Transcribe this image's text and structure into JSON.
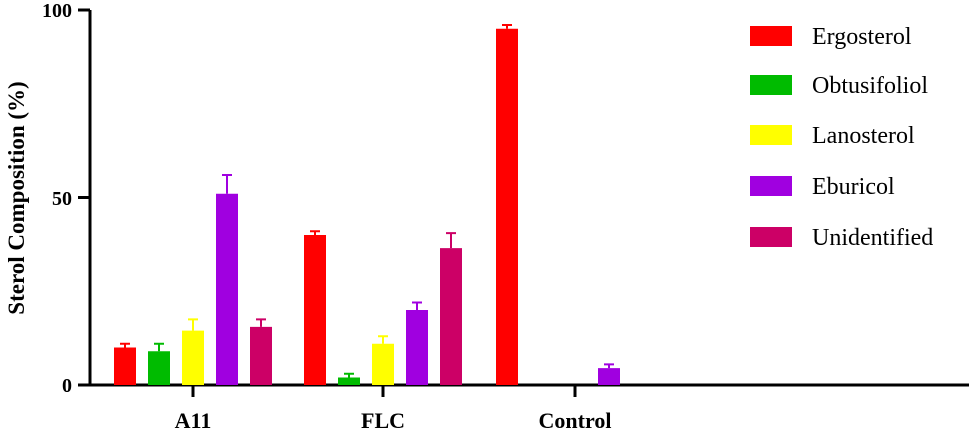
{
  "chart_data": {
    "type": "bar",
    "ylabel": "Sterol Composition (%)",
    "xlabel": "",
    "ylim": [
      0,
      100
    ],
    "yticks": [
      "0",
      "50",
      "100"
    ],
    "categories": [
      "A11",
      "FLC",
      "Control"
    ],
    "legend_position": "right",
    "series": [
      {
        "name": "Ergosterol",
        "color": "#ff0000",
        "values": [
          10,
          40,
          95
        ],
        "errors": [
          1,
          1,
          1
        ]
      },
      {
        "name": "Obtusifoliol",
        "color": "#00bb00",
        "values": [
          9,
          2,
          0
        ],
        "errors": [
          2,
          1,
          0
        ]
      },
      {
        "name": "Lanosterol",
        "color": "#ffff00",
        "values": [
          14.5,
          11,
          0
        ],
        "errors": [
          3,
          2,
          0
        ]
      },
      {
        "name": "Eburicol",
        "color": "#a000e0",
        "values": [
          51,
          20,
          4.5
        ],
        "errors": [
          5,
          2,
          1
        ]
      },
      {
        "name": "Unidentified",
        "color": "#cc0066",
        "values": [
          15.5,
          36.5,
          0
        ],
        "errors": [
          2,
          4,
          0
        ]
      }
    ]
  }
}
